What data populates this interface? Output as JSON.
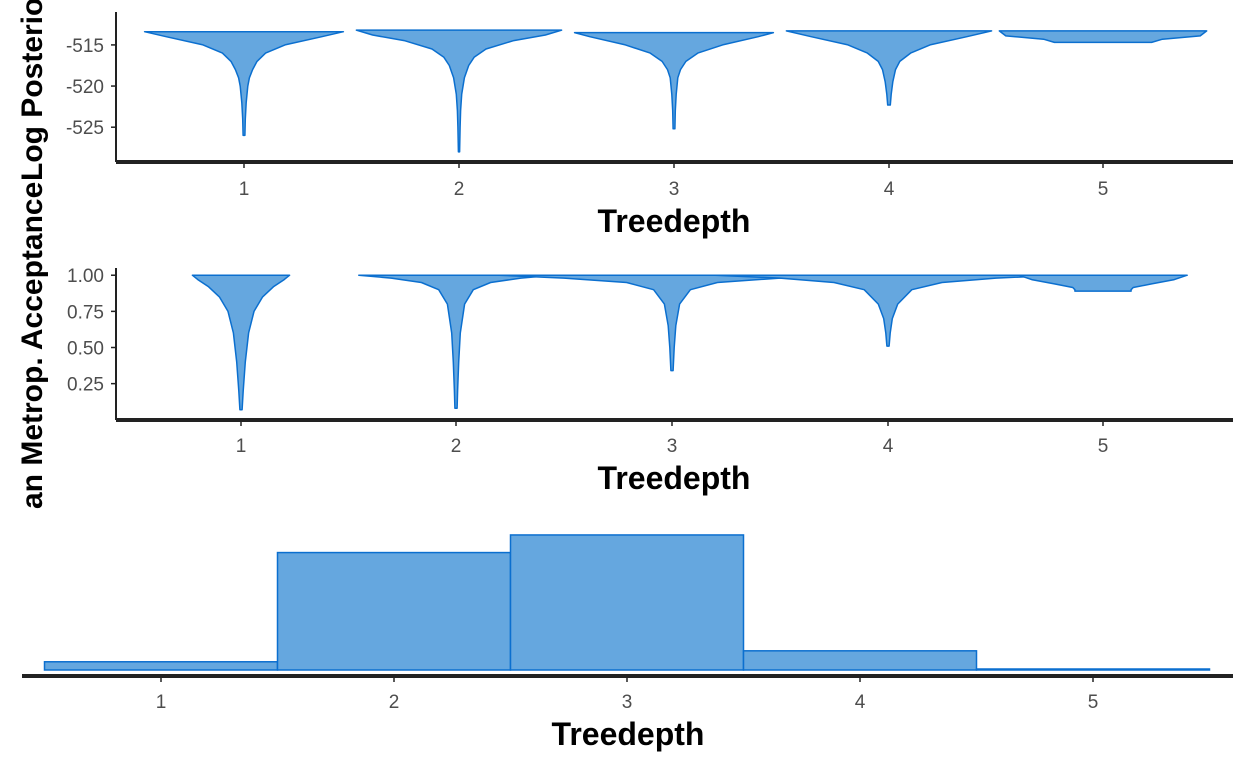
{
  "colors": {
    "fill": "#65A7DF",
    "stroke": "#0B6FCF",
    "axis": "#222222",
    "tick_text": "#4d4d4d"
  },
  "chart_data": [
    {
      "type": "violin",
      "title": "",
      "xlabel": "Treedepth",
      "ylabel": "Log Posterior",
      "categories": [
        "1",
        "2",
        "3",
        "4",
        "5"
      ],
      "yticks": [
        -515,
        -520,
        -525
      ],
      "ylim": [
        -528.5,
        -511
      ],
      "violins": [
        {
          "x": "1",
          "profile": [
            [
              -513.4,
              0.92
            ],
            [
              -514.0,
              0.72
            ],
            [
              -515.0,
              0.38
            ],
            [
              -516.0,
              0.2
            ],
            [
              -517.0,
              0.12
            ],
            [
              -518.0,
              0.08
            ],
            [
              -519.0,
              0.05
            ],
            [
              -520.0,
              0.035
            ],
            [
              -522.0,
              0.02
            ],
            [
              -524.0,
              0.012
            ],
            [
              -526.0,
              0.008
            ]
          ]
        },
        {
          "x": "2",
          "profile": [
            [
              -513.2,
              0.95
            ],
            [
              -513.8,
              0.8
            ],
            [
              -514.5,
              0.5
            ],
            [
              -515.5,
              0.25
            ],
            [
              -516.5,
              0.14
            ],
            [
              -517.5,
              0.09
            ],
            [
              -519.0,
              0.05
            ],
            [
              -521.0,
              0.025
            ],
            [
              -523.0,
              0.015
            ],
            [
              -525.0,
              0.01
            ],
            [
              -528.0,
              0.006
            ]
          ]
        },
        {
          "x": "3",
          "profile": [
            [
              -513.5,
              0.92
            ],
            [
              -514.0,
              0.78
            ],
            [
              -515.0,
              0.45
            ],
            [
              -516.0,
              0.22
            ],
            [
              -517.0,
              0.11
            ],
            [
              -518.0,
              0.06
            ],
            [
              -519.0,
              0.035
            ],
            [
              -521.0,
              0.02
            ],
            [
              -523.0,
              0.012
            ],
            [
              -525.2,
              0.008
            ]
          ]
        },
        {
          "x": "4",
          "profile": [
            [
              -513.3,
              0.95
            ],
            [
              -514.0,
              0.72
            ],
            [
              -515.0,
              0.38
            ],
            [
              -516.0,
              0.2
            ],
            [
              -517.0,
              0.1
            ],
            [
              -518.0,
              0.06
            ],
            [
              -519.5,
              0.035
            ],
            [
              -521.0,
              0.02
            ],
            [
              -522.3,
              0.012
            ]
          ]
        },
        {
          "x": "5",
          "profile": [
            [
              -513.3,
              0.96
            ],
            [
              -513.9,
              0.9
            ],
            [
              -514.3,
              0.55
            ],
            [
              -514.7,
              0.45
            ]
          ]
        }
      ]
    },
    {
      "type": "violin",
      "title": "",
      "xlabel": "Treedepth",
      "ylabel": "Mean Metrop. Acceptance",
      "categories": [
        "1",
        "2",
        "3",
        "4",
        "5"
      ],
      "yticks": [
        1.0,
        0.75,
        0.5,
        0.25
      ],
      "ytick_labels": [
        "1.00",
        "0.75",
        "0.50",
        "0.25"
      ],
      "ylim": [
        0.04,
        1.05
      ],
      "violins": [
        {
          "x": "1",
          "profile": [
            [
              1.0,
              0.45
            ],
            [
              0.97,
              0.4
            ],
            [
              0.92,
              0.3
            ],
            [
              0.85,
              0.2
            ],
            [
              0.75,
              0.12
            ],
            [
              0.6,
              0.07
            ],
            [
              0.4,
              0.04
            ],
            [
              0.2,
              0.02
            ],
            [
              0.07,
              0.01
            ]
          ]
        },
        {
          "x": "2",
          "profile": [
            [
              1.0,
              0.9
            ],
            [
              0.98,
              0.6
            ],
            [
              0.95,
              0.32
            ],
            [
              0.9,
              0.16
            ],
            [
              0.8,
              0.08
            ],
            [
              0.6,
              0.04
            ],
            [
              0.4,
              0.025
            ],
            [
              0.2,
              0.015
            ],
            [
              0.08,
              0.01
            ]
          ]
        },
        {
          "x": "3",
          "profile": [
            [
              1.0,
              1.6
            ],
            [
              0.98,
              1.0
            ],
            [
              0.95,
              0.42
            ],
            [
              0.9,
              0.17
            ],
            [
              0.8,
              0.07
            ],
            [
              0.65,
              0.035
            ],
            [
              0.5,
              0.02
            ],
            [
              0.34,
              0.01
            ]
          ]
        },
        {
          "x": "4",
          "profile": [
            [
              1.0,
              1.6
            ],
            [
              0.98,
              1.0
            ],
            [
              0.95,
              0.5
            ],
            [
              0.9,
              0.22
            ],
            [
              0.8,
              0.09
            ],
            [
              0.7,
              0.04
            ],
            [
              0.6,
              0.02
            ],
            [
              0.51,
              0.01
            ]
          ]
        },
        {
          "x": "5",
          "profile": [
            [
              1.0,
              0.78
            ],
            [
              0.97,
              0.66
            ],
            [
              0.94,
              0.45
            ],
            [
              0.915,
              0.28
            ],
            [
              0.9,
              0.26
            ],
            [
              0.89,
              0.26
            ]
          ]
        }
      ]
    },
    {
      "type": "bar",
      "title": "",
      "xlabel": "Treedepth",
      "ylabel": "",
      "categories": [
        "1",
        "2",
        "3",
        "4",
        "5"
      ],
      "values": [
        4.2,
        60,
        69,
        9.8,
        0.4
      ],
      "ylim": [
        0,
        70
      ]
    }
  ],
  "shared_ylabel_visible": "an Metrop. Acceptance"
}
